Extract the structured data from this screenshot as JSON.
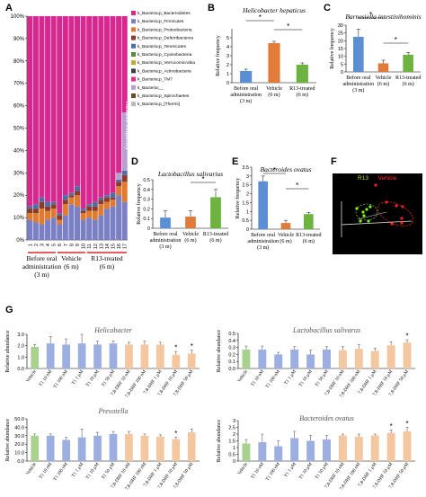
{
  "panel_labels": {
    "A": "A",
    "B": "B",
    "C": "C",
    "D": "D",
    "E": "E",
    "F": "F",
    "G": "G"
  },
  "legend": [
    {
      "label": "k_Bacteria;p_Bacteroidetes",
      "color": "#d6288f"
    },
    {
      "label": "k_Bacteria;p_Firmicutes",
      "color": "#7b7fc4"
    },
    {
      "label": "k_Bacteria;p_Proteobacteria",
      "color": "#e07a2e"
    },
    {
      "label": "k_Bacteria;p_Deferribacteres",
      "color": "#8a3b2c"
    },
    {
      "label": "k_Bacteria;p_Tenericutes",
      "color": "#4a6ea8"
    },
    {
      "label": "k_Bacteria;p_Cyanobacteria",
      "color": "#5d8a3a"
    },
    {
      "label": "k_Bacteria;p_Verrucomicrobia",
      "color": "#c9a43b"
    },
    {
      "label": "k_Bacteria;p_Actinobacteria",
      "color": "#3d3d3d"
    },
    {
      "label": "k_Bacteria;p_TM7",
      "color": "#e2308a"
    },
    {
      "label": "k_Bacteria;__",
      "color": "#b99fd0"
    },
    {
      "label": "k_Bacteria;p_Spirochaetes",
      "color": "#6e4a2a"
    },
    {
      "label": "k_Bacteria;p_[Thermi]",
      "color": "#b8b8b8"
    }
  ],
  "panelA": {
    "ylabel": "Relative frequency",
    "ticks": [
      "0%",
      "10%",
      "20%",
      "30%",
      "40%",
      "50%",
      "60%",
      "70%",
      "80%",
      "90%",
      "100%"
    ],
    "samples": [
      "1",
      "2",
      "3",
      "4",
      "5",
      "6",
      "7",
      "8",
      "9",
      "10",
      "11",
      "12",
      "13",
      "14",
      "15",
      "16",
      "17"
    ],
    "groups": [
      "Before oral\nadministration\n(3 m)",
      "Vehicle\n(6 m)",
      "R13-treated\n(6 m)"
    ]
  },
  "panelF": {
    "r13": "R13",
    "vehicle": "Vehicle"
  },
  "chart_data": [
    {
      "type": "bar",
      "panel": "A",
      "stacked": true,
      "ylim": [
        0,
        100
      ],
      "categories": [
        "1",
        "2",
        "3",
        "4",
        "5",
        "6",
        "7",
        "8",
        "9",
        "10",
        "11",
        "12",
        "13",
        "14",
        "15",
        "16",
        "17"
      ],
      "series": [
        {
          "name": "k_Bacteria;p_Firmicutes",
          "values": [
            9,
            8,
            7,
            9,
            10,
            7,
            11,
            16,
            15,
            9,
            10,
            9,
            11,
            14,
            15,
            20,
            17
          ]
        },
        {
          "name": "k_Bacteria;p_Proteobacteria",
          "values": [
            3,
            4,
            7,
            4,
            4,
            2,
            5,
            3,
            5,
            3,
            3,
            4,
            5,
            3,
            3,
            4,
            9
          ]
        },
        {
          "name": "k_Bacteria;p_Deferribacteres",
          "values": [
            2,
            2,
            3,
            2,
            2,
            2,
            2,
            1,
            2,
            1,
            2,
            2,
            2,
            2,
            1,
            2,
            3
          ]
        },
        {
          "name": "k_Bacteria;p_Tenericutes",
          "values": [
            1,
            2,
            2,
            2,
            1,
            1,
            2,
            1,
            2,
            1,
            1,
            2,
            1,
            1,
            2,
            1,
            2
          ]
        },
        {
          "name": "k_Bacteria;__",
          "values": [
            0,
            0,
            0,
            0,
            0,
            0,
            0,
            0,
            0,
            0,
            0,
            0,
            0,
            0,
            0,
            3,
            26
          ]
        },
        {
          "name": "k_Bacteria;p_Bacteroidetes",
          "values": [
            85,
            84,
            81,
            83,
            83,
            88,
            80,
            79,
            76,
            86,
            84,
            83,
            81,
            80,
            79,
            70,
            43
          ]
        }
      ]
    },
    {
      "type": "bar",
      "panel": "B",
      "title": "Helicobacter hepaticus",
      "ylabel": "Relative frequency",
      "ylim": [
        0,
        6
      ],
      "categories": [
        "Before oral administration (3 m)",
        "Vehicle (6 m)",
        "R13-treated (6 m)"
      ],
      "values": [
        1.3,
        4.4,
        2.0
      ],
      "errors": [
        0.2,
        0.2,
        0.2
      ],
      "colors": [
        "#5b8fd3",
        "#e07b39",
        "#6db33f"
      ],
      "significance": [
        "*",
        "*"
      ]
    },
    {
      "type": "bar",
      "panel": "C",
      "title": "Barnesiella intestinihominis",
      "ylabel": "Relative frequency",
      "ylim": [
        0,
        30
      ],
      "categories": [
        "Before oral administration (3 m)",
        "Vehicle (6 m)",
        "R13-treated (6 m)"
      ],
      "values": [
        22.5,
        5.5,
        11
      ],
      "errors": [
        5,
        2,
        1.5
      ],
      "colors": [
        "#5b8fd3",
        "#e07b39",
        "#6db33f"
      ],
      "significance": [
        "*",
        "*"
      ]
    },
    {
      "type": "bar",
      "panel": "D",
      "title": "Lactobacillus salivarius",
      "ylabel": "Relative frequency",
      "ylim": [
        0,
        0.5
      ],
      "categories": [
        "Before oral administration (3 m)",
        "Vehicle (6 m)",
        "R13-treated (6 m)"
      ],
      "values": [
        0.11,
        0.12,
        0.32
      ],
      "errors": [
        0.07,
        0.06,
        0.08
      ],
      "colors": [
        "#5b8fd3",
        "#e07b39",
        "#6db33f"
      ],
      "significance": [
        "*"
      ]
    },
    {
      "type": "bar",
      "panel": "E",
      "title": "Bacteroides ovatus",
      "ylabel": "Relative frequency",
      "ylim": [
        0,
        3.5
      ],
      "categories": [
        "Before oral administration (3 m)",
        "Vehicle (6 m)",
        "R13-treated (6 m)"
      ],
      "values": [
        2.7,
        0.35,
        0.85
      ],
      "errors": [
        0.3,
        0.15,
        0.1
      ],
      "colors": [
        "#5b8fd3",
        "#e07b39",
        "#6db33f"
      ],
      "significance": [
        "*",
        "*"
      ]
    },
    {
      "type": "bar",
      "panel": "G1",
      "title": "Helicobacter",
      "ylabel": "Relative abundance",
      "ylim": [
        0,
        3
      ],
      "yticks": [
        "0.0",
        "1.0",
        "2.0",
        "3.0"
      ],
      "categories": [
        "Vehicle",
        "T1 10 nM",
        "T1 100 nM",
        "T1 1 µM",
        "T1 10 µM",
        "T1 50 µM",
        "7,8-DHF 10 nM",
        "7,8-DHF 100 nM",
        "7,8-DHF 1 µM",
        "7,8-DHF 10 µM",
        "7,8-DHF 50 µM"
      ],
      "values": [
        1.9,
        2.2,
        2.1,
        2.2,
        2.1,
        2.2,
        2.1,
        2.1,
        2.1,
        1.2,
        1.3
      ],
      "errors": [
        0.2,
        0.6,
        0.5,
        0.8,
        0.3,
        0.2,
        0.2,
        0.3,
        0.2,
        0.3,
        0.3
      ],
      "stars": [
        false,
        false,
        false,
        false,
        false,
        false,
        false,
        false,
        false,
        true,
        true
      ]
    },
    {
      "type": "bar",
      "panel": "G2",
      "title": "Lactobacillus salivarus",
      "ylabel": "Relative abundance",
      "ylim": [
        0,
        0.5
      ],
      "yticks": [
        "0.0",
        "0.1",
        "0.2",
        "0.3",
        "0.4",
        "0.5"
      ],
      "categories": [
        "Vehicle",
        "T1 10 nM",
        "T1 100 nM",
        "T1 1 µM",
        "T1 10 µM",
        "T1 50 µM",
        "7,8-DHF 10 nM",
        "7,8-DHF 100 nM",
        "7,8-DHF 1 µM",
        "7,8-DHF 10 µM",
        "7,8-DHF 50 µM"
      ],
      "values": [
        0.27,
        0.27,
        0.2,
        0.27,
        0.2,
        0.27,
        0.26,
        0.28,
        0.25,
        0.33,
        0.37
      ],
      "errors": [
        0.05,
        0.05,
        0.03,
        0.04,
        0.06,
        0.04,
        0.05,
        0.06,
        0.04,
        0.05,
        0.04
      ],
      "stars": [
        false,
        false,
        false,
        false,
        false,
        false,
        false,
        false,
        false,
        false,
        true
      ]
    },
    {
      "type": "bar",
      "panel": "G3",
      "title": "Prevotella",
      "ylabel": "Relative abundance",
      "ylim": [
        0,
        50
      ],
      "yticks": [
        "0.0",
        "10.0",
        "20.0",
        "30.0",
        "40.0",
        "50.0"
      ],
      "categories": [
        "Vehicle",
        "T1 10 nM",
        "T1 100 nM",
        "T1 1 µM",
        "T1 10 µM",
        "T1 50 µM",
        "7,8-DHF 10 nM",
        "7,8-DHF 100 nM",
        "7,8-DHF 1 µM",
        "7,8-DHF 10 µM",
        "7,8-DHF 50 µM"
      ],
      "values": [
        30,
        30,
        25,
        28,
        30,
        32,
        32,
        30,
        29,
        26,
        34
      ],
      "errors": [
        2,
        2,
        3,
        10,
        4,
        3,
        3,
        2,
        2,
        2,
        4
      ],
      "stars": [
        false,
        false,
        false,
        false,
        false,
        false,
        false,
        false,
        false,
        true,
        false
      ]
    },
    {
      "type": "bar",
      "panel": "G4",
      "title": "Bacteroides ovatus",
      "ylabel": "Relative abundance",
      "ylim": [
        0,
        3
      ],
      "yticks": [
        "0",
        "0.5",
        "1",
        "1.5",
        "2",
        "2.5",
        "3"
      ],
      "categories": [
        "Vehicle",
        "T1 10 nM",
        "T1 100 nM",
        "T1 1 µM",
        "T1 10 µM",
        "T1 50 µM",
        "7,8-DHF 10 nM",
        "7,8-DHF 100 nM",
        "7,8-DHF 1 µM",
        "7,8-DHF 10 µM",
        "7,8-DHF 50 µM"
      ],
      "values": [
        1.3,
        1.4,
        1.1,
        1.7,
        1.5,
        1.6,
        1.9,
        1.8,
        1.9,
        2.1,
        2.2
      ],
      "errors": [
        0.3,
        0.6,
        0.4,
        0.5,
        0.4,
        0.3,
        0.1,
        0.2,
        0.1,
        0.2,
        0.3
      ],
      "stars": [
        false,
        false,
        false,
        false,
        false,
        false,
        false,
        false,
        false,
        true,
        true
      ]
    }
  ]
}
